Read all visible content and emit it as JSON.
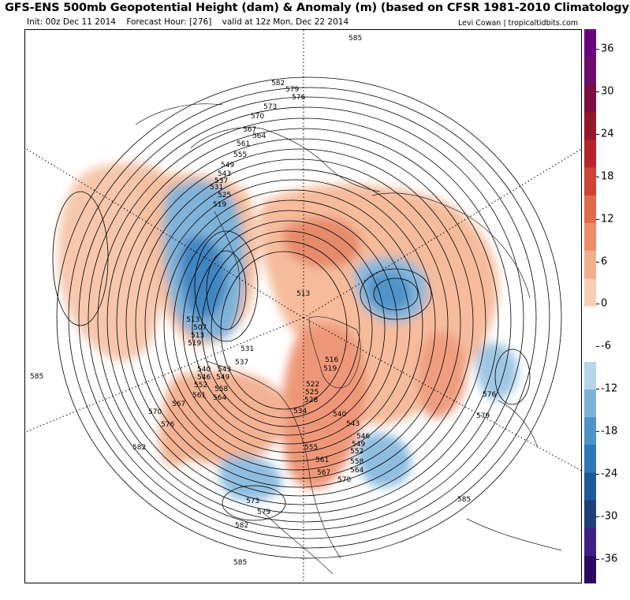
{
  "header": {
    "title": "GFS-ENS 500mb Geopotential Height (dam) & Anomaly (m) (based on CFSR 1981-2010 Climatology)",
    "init_label": "Init: 00z Dec 11 2014",
    "forecast_hour_label": "Forecast Hour: [276]",
    "valid_label": "valid at 12z Mon, Dec 22 2014",
    "credit": "Levi Cowan | tropicaltidbits.com"
  },
  "colorbar": {
    "ticks": [
      "36",
      "30",
      "24",
      "18",
      "12",
      "6",
      "0",
      "-6",
      "-12",
      "-18",
      "-24",
      "-30",
      "-36"
    ],
    "colors": [
      "#2c0a63",
      "#3d1f86",
      "#1f3f7a",
      "#1f5a98",
      "#2d78b8",
      "#4f93c8",
      "#7eb3d8",
      "#b6d4ea",
      "#ffffff",
      "#ffffff",
      "#f8cdb6",
      "#f2ad8d",
      "#ec8d68",
      "#e06a4a",
      "#cf4335",
      "#b8242c",
      "#97172a",
      "#7a0c3f",
      "#6b0c6b",
      "#6a0080"
    ]
  },
  "map": {
    "height_labels": [
      {
        "text": "585"
      },
      {
        "text": "582"
      },
      {
        "text": "579"
      },
      {
        "text": "576"
      },
      {
        "text": "573"
      },
      {
        "text": "570"
      },
      {
        "text": "567"
      },
      {
        "text": "564"
      },
      {
        "text": "561"
      },
      {
        "text": "555"
      },
      {
        "text": "549"
      },
      {
        "text": "543"
      },
      {
        "text": "537"
      },
      {
        "text": "531"
      },
      {
        "text": "525"
      },
      {
        "text": "519"
      },
      {
        "text": "513"
      },
      {
        "text": "507"
      },
      {
        "text": "513"
      },
      {
        "text": "519"
      },
      {
        "text": "531"
      },
      {
        "text": "537"
      },
      {
        "text": "540"
      },
      {
        "text": "543"
      },
      {
        "text": "546"
      },
      {
        "text": "549"
      },
      {
        "text": "552"
      },
      {
        "text": "558"
      },
      {
        "text": "561"
      },
      {
        "text": "564"
      },
      {
        "text": "567"
      },
      {
        "text": "570"
      },
      {
        "text": "576"
      },
      {
        "text": "582"
      },
      {
        "text": "585"
      },
      {
        "text": "513"
      },
      {
        "text": "516"
      },
      {
        "text": "519"
      },
      {
        "text": "522"
      },
      {
        "text": "525"
      },
      {
        "text": "528"
      },
      {
        "text": "534"
      },
      {
        "text": "540"
      },
      {
        "text": "543"
      },
      {
        "text": "546"
      },
      {
        "text": "549"
      },
      {
        "text": "552"
      },
      {
        "text": "555"
      },
      {
        "text": "558"
      },
      {
        "text": "561"
      },
      {
        "text": "564"
      },
      {
        "text": "567"
      },
      {
        "text": "570"
      },
      {
        "text": "573"
      },
      {
        "text": "579"
      },
      {
        "text": "582"
      },
      {
        "text": "585"
      },
      {
        "text": "576"
      },
      {
        "text": "579"
      },
      {
        "text": "585"
      }
    ]
  }
}
